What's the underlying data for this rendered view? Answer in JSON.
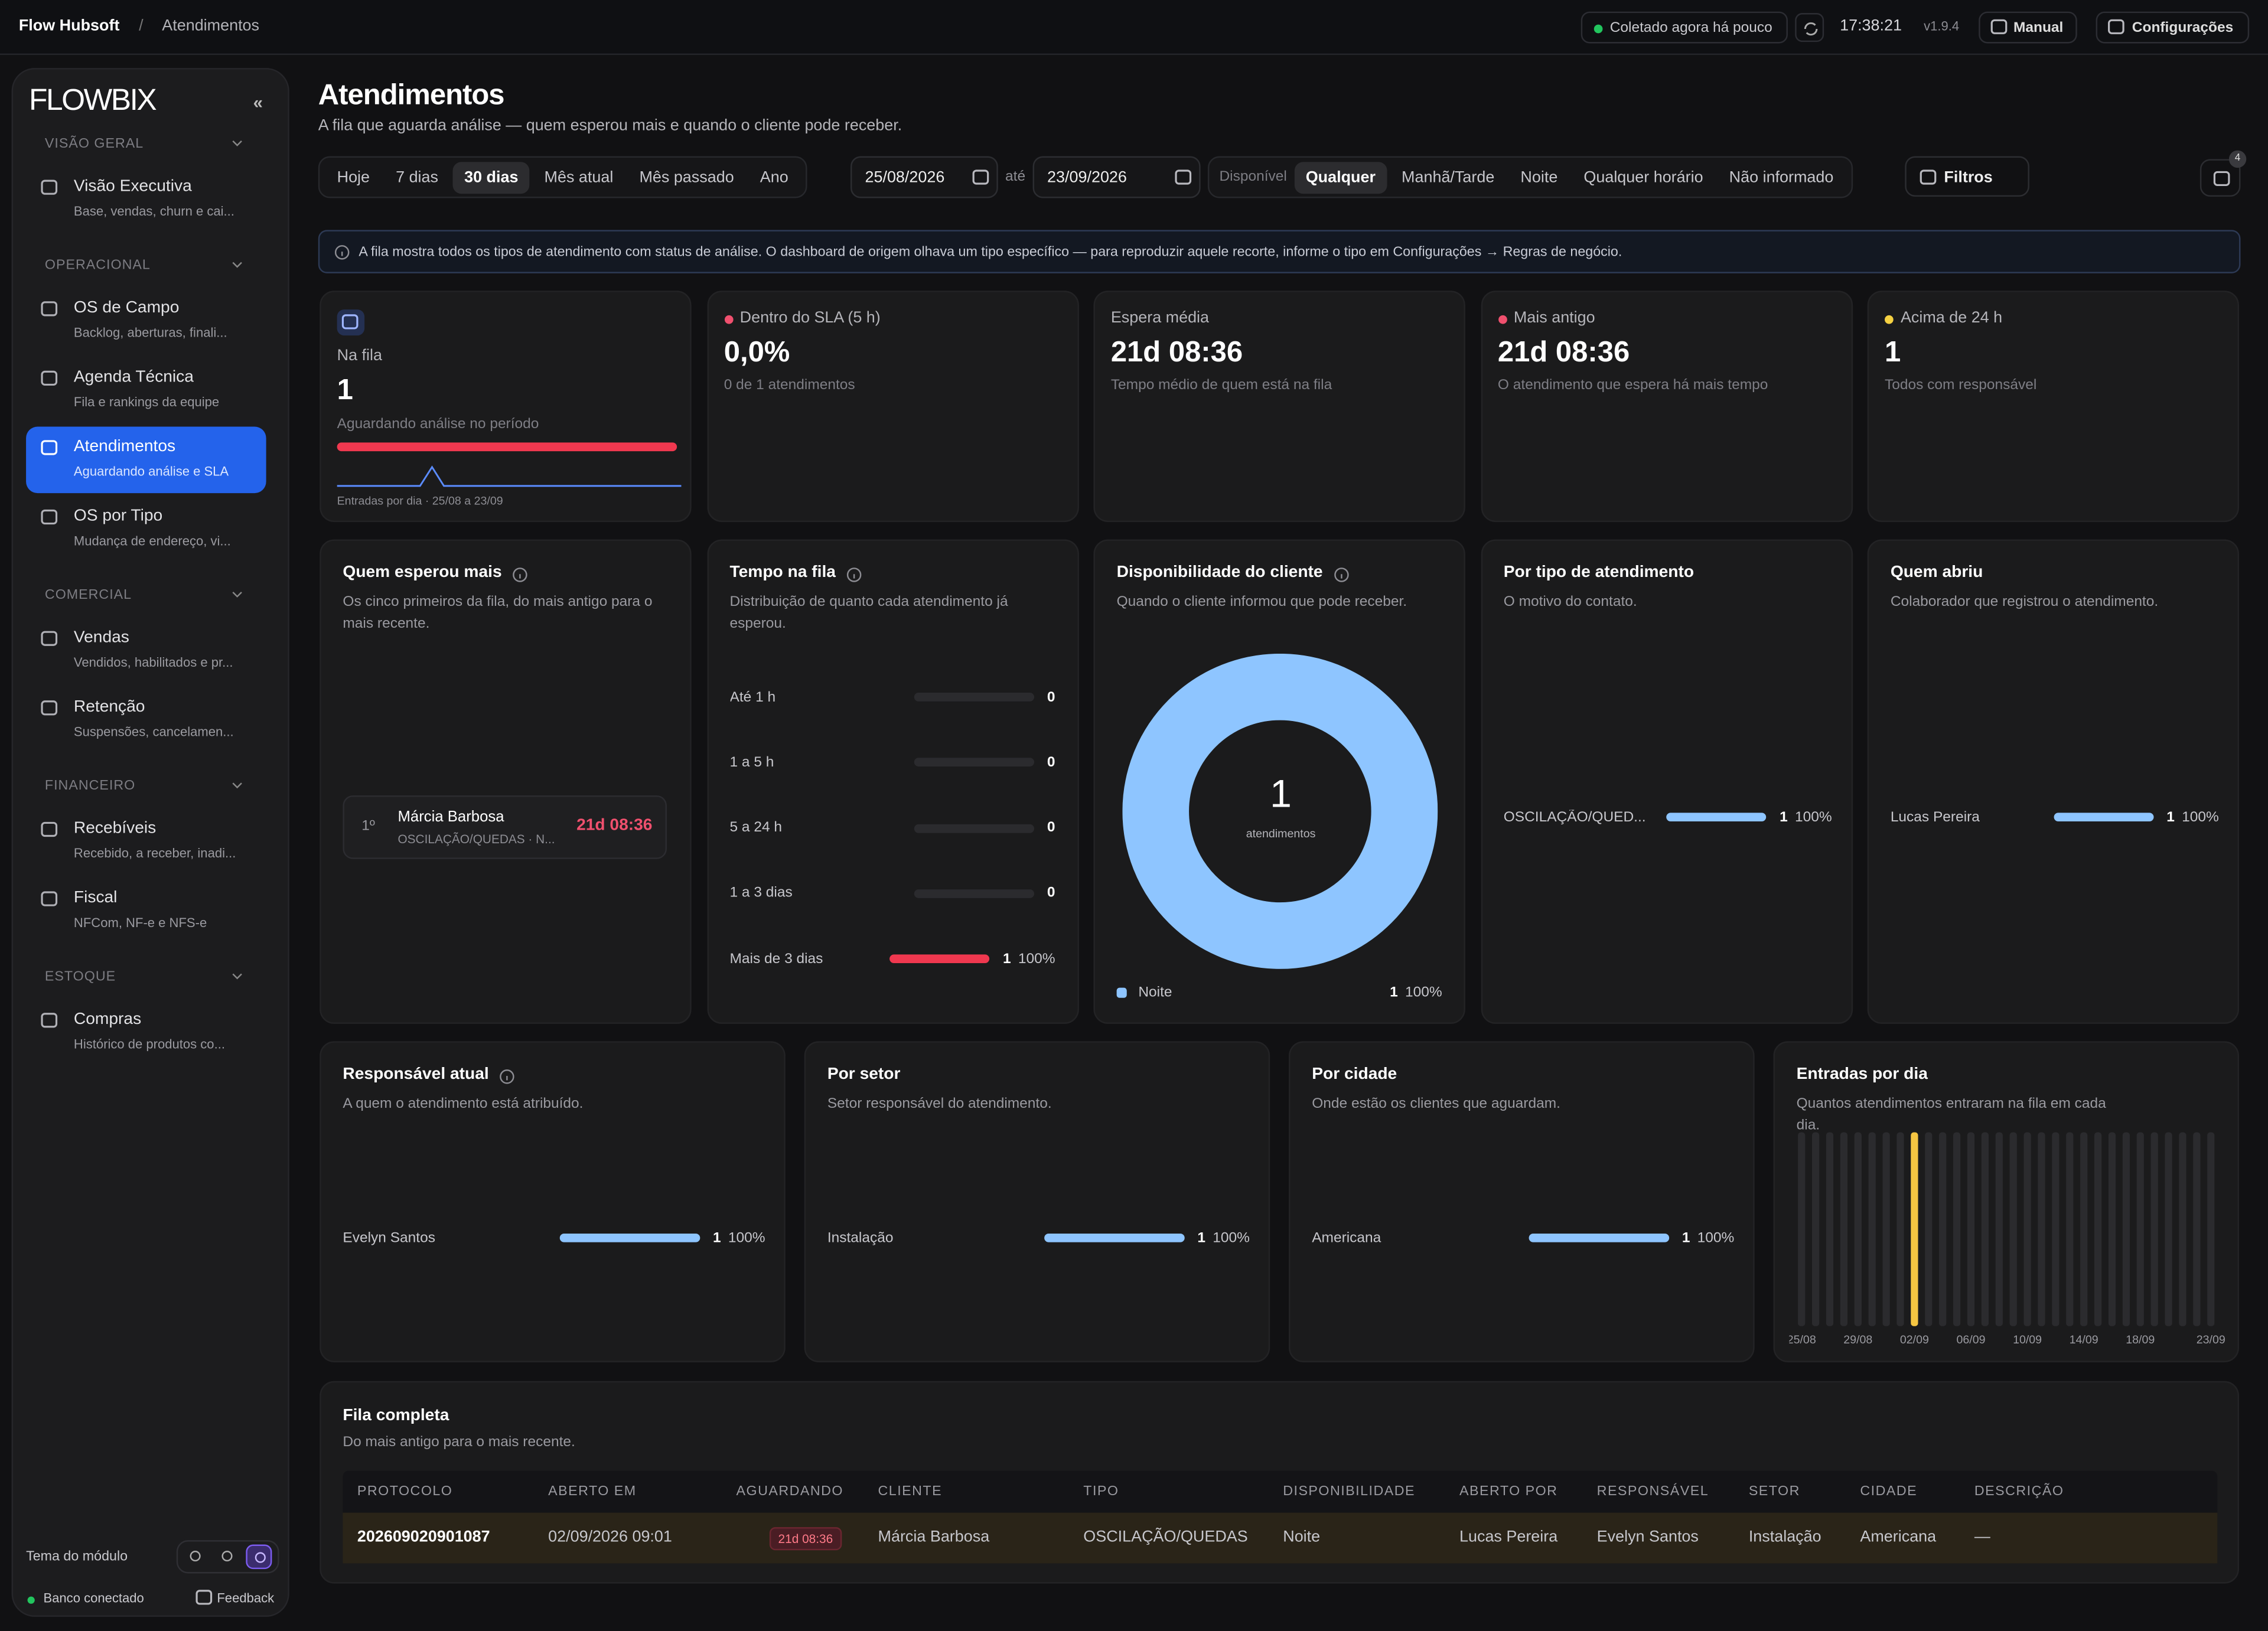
{
  "header": {
    "brand": "Flow Hubsoft",
    "separator": "/",
    "crumb": "Atendimentos",
    "status": "Coletado agora há pouco",
    "time": "17:38:21",
    "version": "v1.9.4",
    "manual": "Manual",
    "settings": "Configurações"
  },
  "sidebar": {
    "logo": "FLOWBIX",
    "collapse": "«",
    "sections": [
      {
        "title": "VISÃO GERAL",
        "items": [
          {
            "label": "Visão Executiva",
            "desc": "Base, vendas, churn e cai..."
          }
        ]
      },
      {
        "title": "OPERACIONAL",
        "items": [
          {
            "label": "OS de Campo",
            "desc": "Backlog, aberturas, finali..."
          },
          {
            "label": "Agenda Técnica",
            "desc": "Fila e rankings da equipe"
          },
          {
            "label": "Atendimentos",
            "desc": "Aguardando análise e SLA",
            "active": true
          },
          {
            "label": "OS por Tipo",
            "desc": "Mudança de endereço, vi..."
          }
        ]
      },
      {
        "title": "COMERCIAL",
        "items": [
          {
            "label": "Vendas",
            "desc": "Vendidos, habilitados e pr..."
          },
          {
            "label": "Retenção",
            "desc": "Suspensões, cancelamen..."
          }
        ]
      },
      {
        "title": "FINANCEIRO",
        "items": [
          {
            "label": "Recebíveis",
            "desc": "Recebido, a receber, inadi..."
          },
          {
            "label": "Fiscal",
            "desc": "NFCom, NF-e e NFS-e"
          }
        ]
      },
      {
        "title": "ESTOQUE",
        "items": [
          {
            "label": "Compras",
            "desc": "Histórico de produtos co..."
          }
        ]
      }
    ],
    "theme_label": "Tema do módulo",
    "db_status": "Banco conectado",
    "feedback": "Feedback"
  },
  "page": {
    "title": "Atendimentos",
    "subtitle": "A fila que aguarda análise — quem esperou mais e quando o cliente pode receber.",
    "periods": [
      "Hoje",
      "7 dias",
      "30 dias",
      "Mês atual",
      "Mês passado",
      "Ano"
    ],
    "active_period": 2,
    "date_from": "25/08/2026",
    "until": "até",
    "date_to": "23/09/2026",
    "availability_label": "Disponível",
    "availability_options": [
      "Qualquer",
      "Manhã/Tarde",
      "Noite",
      "Qualquer horário",
      "Não informado"
    ],
    "active_availability": 0,
    "filters": "Filtros",
    "notifications": "4"
  },
  "banner": "A fila mostra todos os tipos de atendimento com status de análise. O dashboard de origem olhava um tipo específico — para reproduzir aquele recorte, informe o tipo em Configurações → Regras de negócio.",
  "kpis": [
    {
      "label": "Na fila",
      "value": "1",
      "desc": "Aguardando análise no período",
      "caption": "Entradas por dia · 25/08 a 23/09",
      "spark": [
        0,
        0,
        0,
        0,
        0,
        0,
        0,
        0,
        1,
        0,
        0,
        0,
        0,
        0,
        0,
        0,
        0,
        0,
        0,
        0,
        0,
        0,
        0,
        0,
        0,
        0,
        0,
        0,
        0,
        0
      ]
    },
    {
      "dot": "#f0506e",
      "label": "Dentro do SLA (5 h)",
      "value": "0,0%",
      "desc": "0 de 1 atendimentos"
    },
    {
      "label": "Espera média",
      "value": "21d 08:36",
      "desc": "Tempo médio de quem está na fila"
    },
    {
      "dot": "#f0506e",
      "label": "Mais antigo",
      "value": "21d 08:36",
      "desc": "O atendimento que espera há mais tempo"
    },
    {
      "dot": "#f5d142",
      "label": "Acima de 24 h",
      "value": "1",
      "desc": "Todos com responsável"
    }
  ],
  "waited": {
    "title": "Quem esperou mais",
    "subtitle": "Os cinco primeiros da fila, do mais antigo para o mais recente.",
    "rows": [
      {
        "rank": "1º",
        "name": "Márcia Barbosa",
        "detail": "OSCILAÇÃO/QUEDAS · N...",
        "wait": "21d 08:36"
      }
    ]
  },
  "queue_time": {
    "title": "Tempo na fila",
    "subtitle": "Distribuição de quanto cada atendimento já esperou.",
    "rows": [
      {
        "label": "Até 1 h",
        "count": "0"
      },
      {
        "label": "1 a 5 h",
        "count": "0"
      },
      {
        "label": "5 a 24 h",
        "count": "0"
      },
      {
        "label": "1 a 3 dias",
        "count": "0"
      },
      {
        "label": "Mais de 3 dias",
        "count": "1",
        "pct": "100%"
      }
    ]
  },
  "availability": {
    "title": "Disponibilidade do cliente",
    "subtitle": "Quando o cliente informou que pode receber.",
    "total": "1",
    "total_label": "atendimentos",
    "items": [
      {
        "name": "Noite",
        "color": "#8ec5ff",
        "count": "1",
        "pct": "100%"
      }
    ]
  },
  "bar_panels": [
    {
      "title": "Por tipo de atendimento",
      "subtitle": "O motivo do contato.",
      "rows": [
        {
          "label": "OSCILAÇÃO/QUED...",
          "count": "1",
          "pct": "100%"
        }
      ]
    },
    {
      "title": "Quem abriu",
      "subtitle": "Colaborador que registrou o atendimento.",
      "rows": [
        {
          "label": "Lucas Pereira",
          "count": "1",
          "pct": "100%"
        }
      ]
    },
    {
      "title": "Responsável atual",
      "info": true,
      "subtitle": "A quem o atendimento está atribuído.",
      "rows": [
        {
          "label": "Evelyn Santos",
          "count": "1",
          "pct": "100%"
        }
      ]
    },
    {
      "title": "Por setor",
      "subtitle": "Setor responsável do atendimento.",
      "rows": [
        {
          "label": "Instalação",
          "count": "1",
          "pct": "100%"
        }
      ]
    },
    {
      "title": "Por cidade",
      "subtitle": "Onde estão os clientes que aguardam.",
      "rows": [
        {
          "label": "Americana",
          "count": "1",
          "pct": "100%"
        }
      ]
    }
  ],
  "daily": {
    "title": "Entradas por dia",
    "subtitle": "Quantos atendimentos entraram na fila em cada dia.",
    "color": "#f5c542",
    "categories": [
      "25/08",
      null,
      null,
      null,
      "29/08",
      null,
      null,
      null,
      "02/09",
      null,
      null,
      null,
      "06/09",
      null,
      null,
      null,
      "10/09",
      null,
      null,
      null,
      "14/09",
      null,
      null,
      null,
      "18/09",
      null,
      null,
      null,
      null,
      "23/09"
    ],
    "values": [
      0,
      0,
      0,
      0,
      0,
      0,
      0,
      0,
      1,
      0,
      0,
      0,
      0,
      0,
      0,
      0,
      0,
      0,
      0,
      0,
      0,
      0,
      0,
      0,
      0,
      0,
      0,
      0,
      0,
      0
    ]
  },
  "table": {
    "title": "Fila completa",
    "subtitle": "Do mais antigo para o mais recente.",
    "columns": [
      "PROTOCOLO",
      "ABERTO EM",
      "AGUARDANDO",
      "CLIENTE",
      "TIPO",
      "DISPONIBILIDADE",
      "ABERTO POR",
      "RESPONSÁVEL",
      "SETOR",
      "CIDADE",
      "DESCRIÇÃO"
    ],
    "rows": [
      [
        "202609020901087",
        "02/09/2026 09:01",
        "21d 08:36",
        "Márcia Barbosa",
        "OSCILAÇÃO/QUEDAS",
        "Noite",
        "Lucas Pereira",
        "Evelyn Santos",
        "Instalação",
        "Americana",
        "—"
      ]
    ]
  }
}
